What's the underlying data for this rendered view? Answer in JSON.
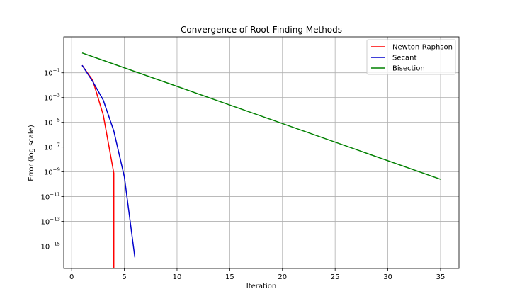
{
  "chart_data": {
    "type": "line",
    "title": "Convergence of Root-Finding Methods",
    "xlabel": "Iteration",
    "ylabel": "Error (log scale)",
    "xlim": [
      -0.75,
      36.75
    ],
    "ylim_log10": [
      -16.8,
      1.9
    ],
    "yscale": "log",
    "grid": true,
    "legend_position": "top-right",
    "x_ticks": [
      0,
      5,
      10,
      15,
      20,
      25,
      30,
      35
    ],
    "y_ticks_exp": [
      -1,
      -3,
      -5,
      -7,
      -9,
      -11,
      -13,
      -15
    ],
    "series": [
      {
        "name": "Newton-Raphson",
        "color": "#ff0000",
        "x": [
          1,
          2,
          3,
          4,
          4
        ],
        "y_log10": [
          -0.4,
          -1.6,
          -4.4,
          -9.1,
          -17.0
        ]
      },
      {
        "name": "Secant",
        "color": "#0000cc",
        "x": [
          1,
          2,
          3,
          4,
          5,
          6
        ],
        "y_log10": [
          -0.4,
          -1.7,
          -3.2,
          -5.7,
          -9.4,
          -15.9
        ]
      },
      {
        "name": "Bisection",
        "color": "#008000",
        "x": [
          1,
          35
        ],
        "y_log10": [
          0.6,
          -9.6
        ]
      }
    ]
  }
}
